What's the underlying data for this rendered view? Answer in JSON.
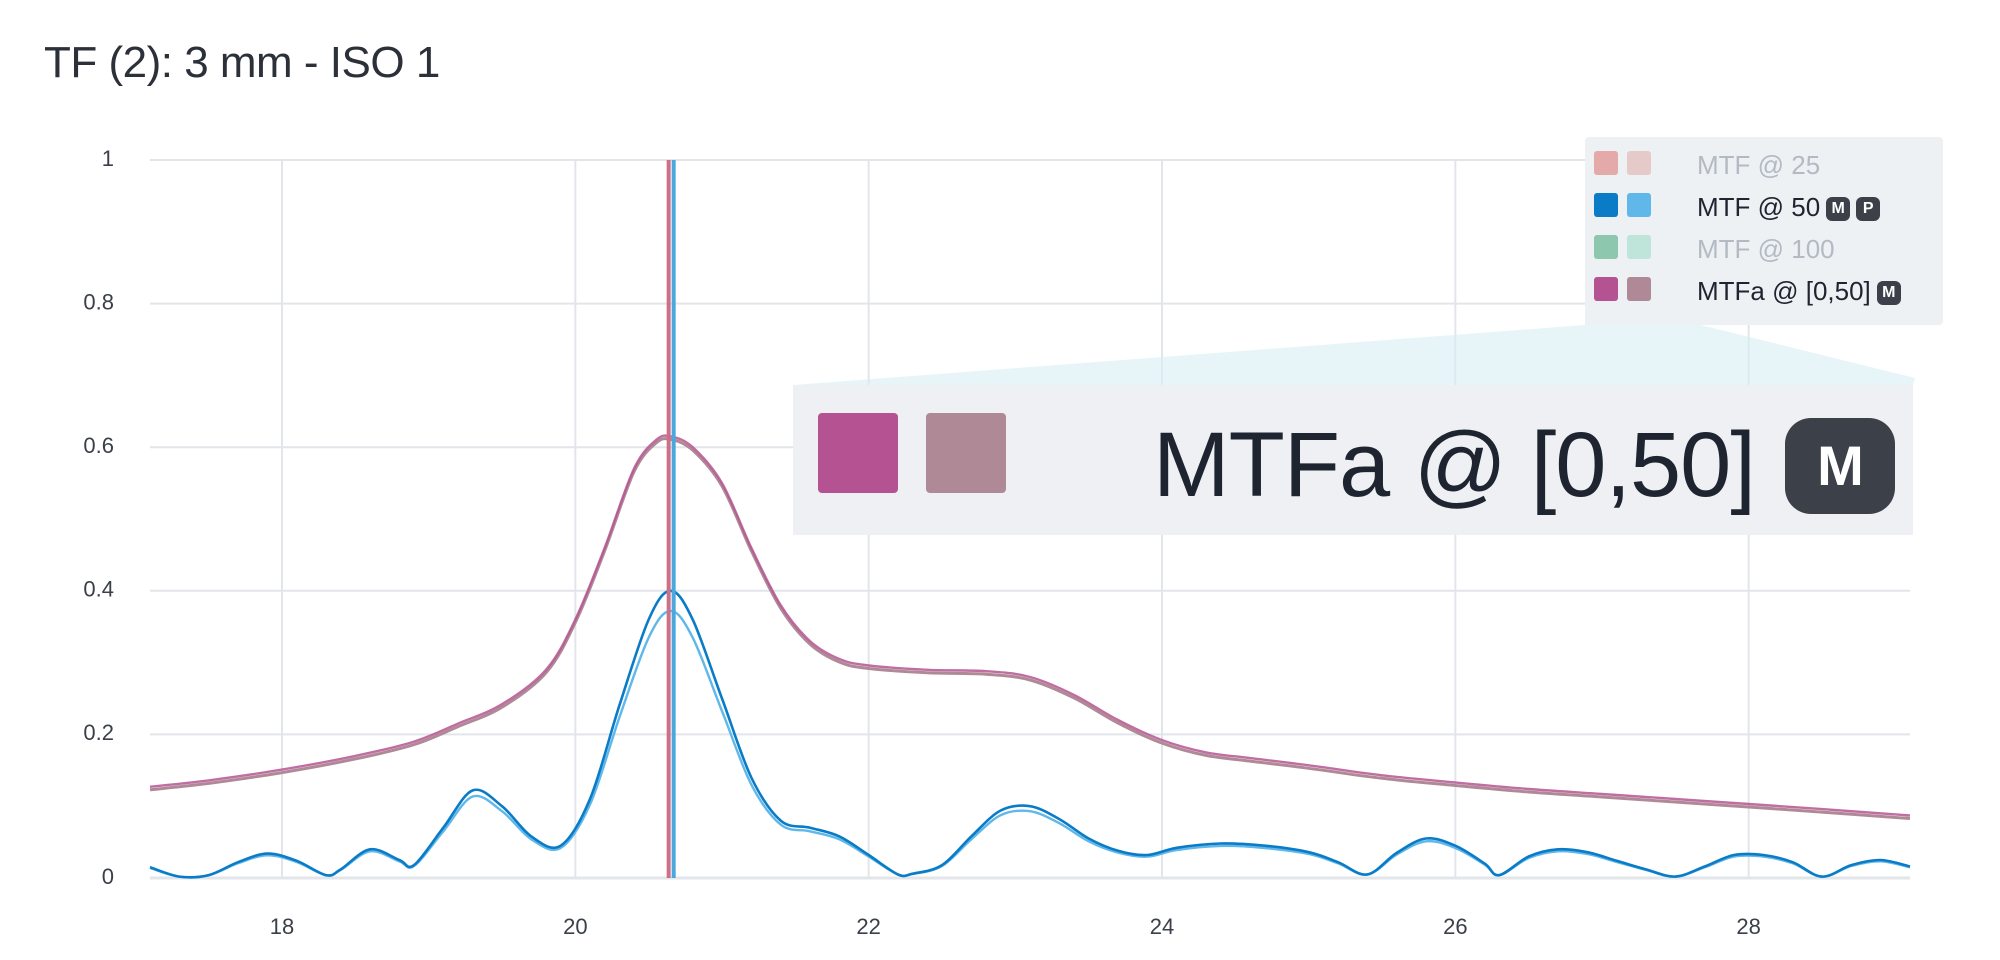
{
  "header": {
    "title": "TF (2): 3 mm - ISO 1"
  },
  "colors": {
    "mtf25_a": "#e4aaaa",
    "mtf25_b": "#e6c9c9",
    "mtf50_a": "#0a7cc7",
    "mtf50_b": "#5fb7ea",
    "mtf100_a": "#8cc7ae",
    "mtf100_b": "#bfe4d9",
    "mtfa_a": "#b55392",
    "mtfa_b": "#b08996",
    "marker_a": "#cf6f87",
    "marker_b": "#4ba7dc",
    "grid": "#e2e5ea",
    "zoom_fill": "#d9eef4"
  },
  "legend": {
    "items": [
      {
        "label": "MTF @ 25",
        "badges": [],
        "active": false
      },
      {
        "label": "MTF @ 50",
        "badges": [
          "M",
          "P"
        ],
        "active": true
      },
      {
        "label": "MTF @ 100",
        "badges": [],
        "active": false
      },
      {
        "label": "MTFa @ [0,50]",
        "badges": [
          "M"
        ],
        "active": true
      }
    ]
  },
  "zoom": {
    "label": "MTFa @ [0,50]",
    "badge": "M"
  },
  "chart_data": {
    "type": "line",
    "title": "TF (2): 3 mm - ISO 1",
    "xlabel": "",
    "ylabel": "",
    "xlim": [
      17.1,
      29.1
    ],
    "ylim": [
      0,
      1
    ],
    "x_ticks": [
      18,
      20,
      22,
      24,
      26,
      28
    ],
    "y_ticks": [
      0,
      0.2,
      0.4,
      0.6,
      0.8,
      1
    ],
    "y_tick_labels": [
      "0",
      "0.2",
      "0.4",
      "0.6",
      "0.8",
      "1"
    ],
    "grid": true,
    "legend_position": "top-right",
    "vertical_marker_x": 20.65,
    "series": [
      {
        "name": "MTF @ 50",
        "x": [
          17.1,
          17.3,
          17.5,
          17.7,
          17.9,
          18.1,
          18.3,
          18.4,
          18.6,
          18.8,
          18.9,
          19.1,
          19.3,
          19.5,
          19.7,
          19.9,
          20.1,
          20.3,
          20.5,
          20.65,
          20.8,
          21.0,
          21.2,
          21.4,
          21.6,
          21.8,
          22.0,
          22.2,
          22.3,
          22.5,
          22.7,
          22.9,
          23.1,
          23.3,
          23.5,
          23.7,
          23.9,
          24.1,
          24.4,
          24.7,
          25.0,
          25.2,
          25.4,
          25.6,
          25.8,
          26.0,
          26.2,
          26.3,
          26.5,
          26.7,
          26.9,
          27.1,
          27.3,
          27.5,
          27.7,
          27.9,
          28.1,
          28.3,
          28.5,
          28.7,
          28.9,
          29.1
        ],
        "y": [
          0.015,
          0.002,
          0.004,
          0.022,
          0.034,
          0.024,
          0.004,
          0.012,
          0.04,
          0.025,
          0.018,
          0.07,
          0.122,
          0.1,
          0.058,
          0.045,
          0.11,
          0.24,
          0.36,
          0.4,
          0.36,
          0.25,
          0.14,
          0.08,
          0.07,
          0.058,
          0.032,
          0.005,
          0.006,
          0.018,
          0.058,
          0.094,
          0.1,
          0.082,
          0.055,
          0.038,
          0.032,
          0.042,
          0.048,
          0.045,
          0.036,
          0.022,
          0.005,
          0.035,
          0.055,
          0.045,
          0.02,
          0.004,
          0.03,
          0.04,
          0.036,
          0.024,
          0.012,
          0.002,
          0.016,
          0.032,
          0.032,
          0.022,
          0.002,
          0.018,
          0.025,
          0.016
        ]
      },
      {
        "name": "MTFa @ [0,50]",
        "x": [
          17.1,
          17.5,
          18.0,
          18.5,
          18.9,
          19.2,
          19.5,
          19.8,
          20.0,
          20.2,
          20.4,
          20.55,
          20.65,
          20.8,
          21.0,
          21.2,
          21.4,
          21.6,
          21.8,
          22.0,
          22.4,
          22.8,
          23.1,
          23.4,
          23.7,
          24.0,
          24.3,
          24.6,
          25.0,
          25.5,
          26.0,
          26.5,
          27.0,
          27.5,
          28.0,
          28.5,
          29.1
        ],
        "y": [
          0.127,
          0.136,
          0.151,
          0.17,
          0.19,
          0.215,
          0.242,
          0.29,
          0.36,
          0.46,
          0.57,
          0.61,
          0.615,
          0.6,
          0.55,
          0.46,
          0.38,
          0.33,
          0.305,
          0.296,
          0.29,
          0.288,
          0.28,
          0.255,
          0.22,
          0.192,
          0.175,
          0.167,
          0.157,
          0.143,
          0.133,
          0.124,
          0.117,
          0.11,
          0.103,
          0.096,
          0.087
        ]
      }
    ]
  }
}
